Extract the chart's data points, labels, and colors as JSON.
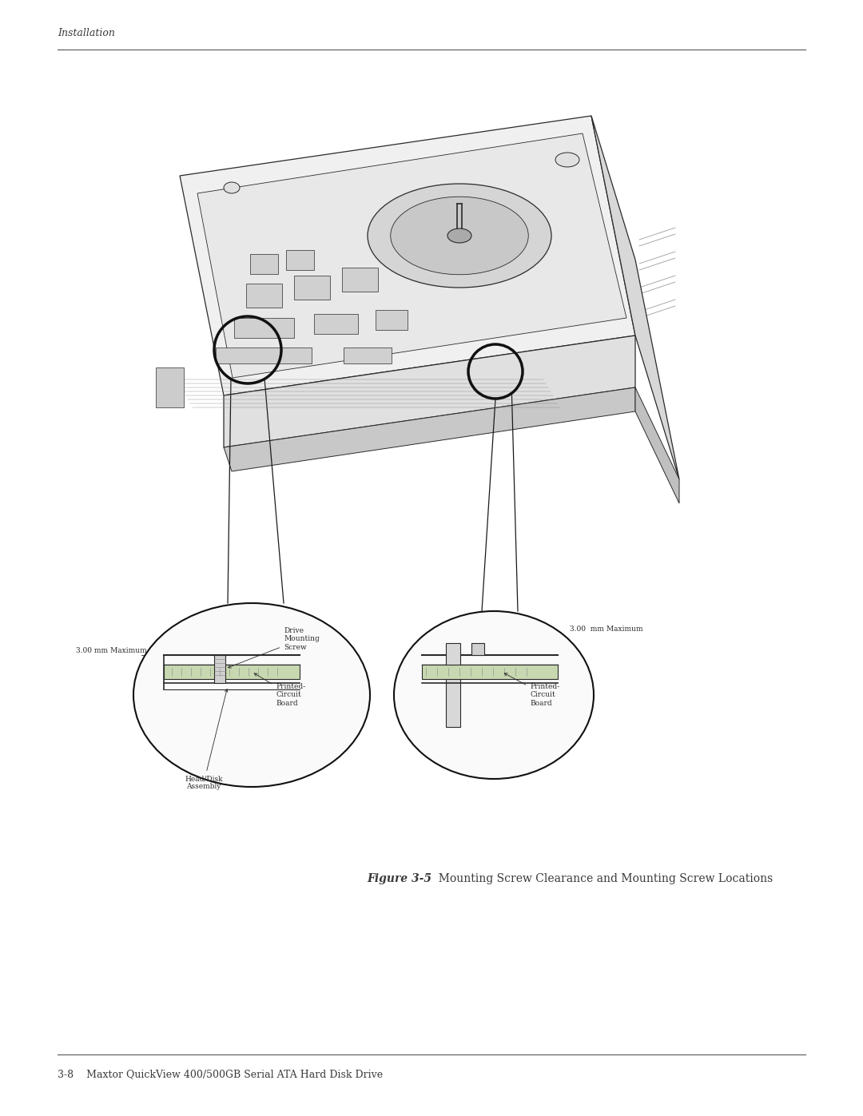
{
  "bg_color": "#ffffff",
  "header_text": "Installation",
  "footer_text": "3-8    Maxtor QuickView 400/500GB Serial ATA Hard Disk Drive",
  "caption_bold": "Figure 3-5",
  "caption_normal": "  Mounting Screw Clearance and Mounting Screw Locations",
  "header_fontsize": 9,
  "footer_fontsize": 9,
  "caption_fontsize": 10,
  "text_color": "#3a3a3a",
  "line_color": "#555555",
  "draw_color": "#2a2a2a"
}
